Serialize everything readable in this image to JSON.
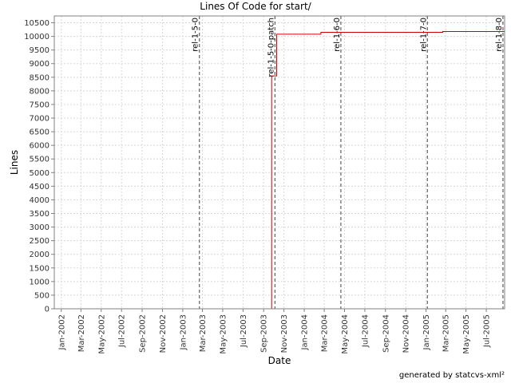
{
  "chart_data": {
    "type": "line",
    "title": "Lines Of Code for start/",
    "xlabel": "Date",
    "ylabel": "Lines",
    "x_ticks": [
      "Jan-2002",
      "Mar-2002",
      "May-2002",
      "Jul-2002",
      "Sep-2002",
      "Nov-2002",
      "Jan-2003",
      "Mar-2003",
      "May-2003",
      "Jul-2003",
      "Sep-2003",
      "Nov-2003",
      "Jan-2004",
      "Mar-2004",
      "May-2004",
      "Jul-2004",
      "Sep-2004",
      "Nov-2004",
      "Jan-2005",
      "Mar-2005",
      "May-2005",
      "Jul-2005"
    ],
    "y_ticks": [
      0,
      500,
      1000,
      1500,
      2000,
      2500,
      3000,
      3500,
      4000,
      4500,
      5000,
      5500,
      6000,
      6500,
      7000,
      7500,
      8000,
      8500,
      9000,
      9500,
      10000,
      10500
    ],
    "ylim": [
      0,
      10750
    ],
    "xlim": [
      "2001-12-11",
      "2005-08-25"
    ],
    "grid": true,
    "series": [
      {
        "color": "#cc0000",
        "points": [
          {
            "x": "2002-01-01",
            "y": 0
          },
          {
            "x": "2003-09-25",
            "y": 0
          },
          {
            "x": "2003-09-25",
            "y": 8550
          },
          {
            "x": "2003-10-10",
            "y": 8550
          },
          {
            "x": "2003-10-10",
            "y": 10080
          },
          {
            "x": "2004-02-20",
            "y": 10080
          },
          {
            "x": "2004-02-20",
            "y": 10150
          },
          {
            "x": "2005-02-20",
            "y": 10150
          },
          {
            "x": "2005-02-20",
            "y": 10180
          },
          {
            "x": "2005-08-25",
            "y": 10180
          }
        ]
      }
    ],
    "markers": [
      {
        "label": "rel-1-5-0",
        "x": "2003-02-20"
      },
      {
        "label": "rel-1-5-0-patch",
        "x": "2003-10-05"
      },
      {
        "label": "rel-1-6-0",
        "x": "2004-04-20"
      },
      {
        "label": "rel-1-7-0",
        "x": "2005-01-05"
      },
      {
        "label": "rel-1-8-0",
        "x": "2005-08-20"
      }
    ]
  },
  "footer": "generated by statcvs-xml²"
}
